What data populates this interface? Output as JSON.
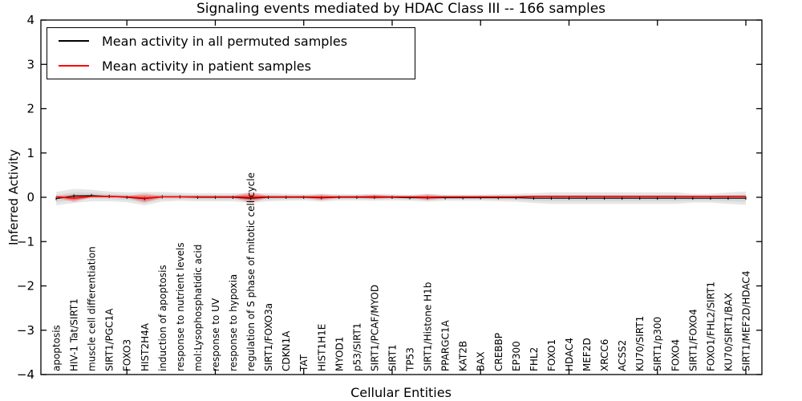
{
  "title": "Signaling events mediated by HDAC Class III -- 166 samples",
  "xlabel": "Cellular Entities",
  "ylabel": "Inferred Activity",
  "legend": [
    {
      "label": "Mean activity in all permuted samples",
      "color": "#000000"
    },
    {
      "label": "Mean activity in patient samples",
      "color": "#ff0000"
    }
  ],
  "colors": {
    "permuted_line": "#000000",
    "patient_line": "#ff0000",
    "permuted_band": "#c8c8c8",
    "patient_band": "#ff0000",
    "frame": "#000000"
  },
  "chart_data": {
    "type": "line",
    "title": "Signaling events mediated by HDAC Class III -- 166 samples",
    "xlabel": "Cellular Entities",
    "ylabel": "Inferred Activity",
    "ylim": [
      -4,
      4
    ],
    "yticks": [
      {
        "v": 4,
        "label": "4"
      },
      {
        "v": 3,
        "label": "3"
      },
      {
        "v": 2,
        "label": "2"
      },
      {
        "v": 1,
        "label": "1"
      },
      {
        "v": 0,
        "label": "0"
      },
      {
        "v": -1,
        "label": "−1"
      },
      {
        "v": -2,
        "label": "−2"
      },
      {
        "v": -3,
        "label": "−3"
      },
      {
        "v": -4,
        "label": "−4"
      }
    ],
    "x_major_tick_every": 5,
    "legend_position": "upper left",
    "grid": false,
    "categories": [
      "apoptosis",
      "HIV-1 Tat/SIRT1",
      "muscle cell differentiation",
      "SIRT1/PGC1A",
      "FOXO3",
      "HIST2H4A",
      "induction of apoptosis",
      "response to nutrient levels",
      "mol:Lysophosphatidic acid",
      "response to UV",
      "response to hypoxia",
      "regulation of S phase of mitotic cell cycle",
      "SIRT1/FOXO3a",
      "CDKN1A",
      "TAT",
      "HIST1H1E",
      "MYOD1",
      "p53/SIRT1",
      "SIRT1/PCAF/MYOD",
      "SIRT1",
      "TP53",
      "SIRT1/Histone H1b",
      "PPARGC1A",
      "KAT2B",
      "BAX",
      "CREBBP",
      "EP300",
      "FHL2",
      "FOXO1",
      "HDAC4",
      "MEF2D",
      "XRCC6",
      "ACSS2",
      "KU70/SIRT1",
      "SIRT1/p300",
      "FOXO4",
      "SIRT1/FOXO4",
      "FOXO1/FHL2/SIRT1",
      "KU70/SIRT1/BAX",
      "SIRT1/MEF2D/HDAC4"
    ],
    "series": [
      {
        "name": "Mean activity in all permuted samples",
        "color": "#000000",
        "values": [
          -0.03,
          0.03,
          0.04,
          0.02,
          0.0,
          -0.03,
          0.01,
          0.01,
          0.0,
          0.0,
          0.0,
          -0.02,
          0.0,
          0.0,
          0.0,
          -0.01,
          0.0,
          0.0,
          0.0,
          0.0,
          -0.01,
          -0.01,
          -0.01,
          -0.01,
          -0.01,
          -0.01,
          -0.01,
          -0.02,
          -0.02,
          -0.02,
          -0.02,
          -0.02,
          -0.02,
          -0.02,
          -0.02,
          -0.02,
          -0.02,
          -0.02,
          -0.02,
          -0.02
        ]
      },
      {
        "name": "Mean activity in patient samples",
        "color": "#ff0000",
        "values": [
          0.01,
          -0.02,
          0.02,
          0.02,
          0.01,
          -0.02,
          0.01,
          0.01,
          0.01,
          0.01,
          0.01,
          0.0,
          0.01,
          0.01,
          0.01,
          0.0,
          0.01,
          0.01,
          0.01,
          0.01,
          0.01,
          0.0,
          0.01,
          0.01,
          0.01,
          0.01,
          0.01,
          0.02,
          0.02,
          0.02,
          0.02,
          0.02,
          0.02,
          0.02,
          0.02,
          0.02,
          0.02,
          0.02,
          0.02,
          0.02
        ]
      }
    ],
    "bands": [
      {
        "name": "permuted-spread",
        "center_series": 0,
        "color": "#c8c8c8",
        "half_widths": [
          0.15,
          0.16,
          0.13,
          0.11,
          0.11,
          0.15,
          0.11,
          0.09,
          0.09,
          0.09,
          0.09,
          0.11,
          0.09,
          0.08,
          0.07,
          0.09,
          0.07,
          0.07,
          0.08,
          0.07,
          0.07,
          0.09,
          0.07,
          0.07,
          0.07,
          0.08,
          0.09,
          0.11,
          0.13,
          0.13,
          0.13,
          0.13,
          0.13,
          0.13,
          0.13,
          0.13,
          0.1,
          0.1,
          0.13,
          0.15
        ]
      },
      {
        "name": "patient-spread",
        "center_series": 1,
        "color": "#ff0000",
        "half_widths": [
          0.02,
          0.09,
          0.02,
          0.03,
          0.02,
          0.11,
          0.02,
          0.02,
          0.02,
          0.02,
          0.02,
          0.13,
          0.02,
          0.02,
          0.02,
          0.07,
          0.02,
          0.02,
          0.05,
          0.02,
          0.02,
          0.07,
          0.02,
          0.02,
          0.02,
          0.02,
          0.02,
          0.02,
          0.02,
          0.02,
          0.02,
          0.02,
          0.02,
          0.02,
          0.02,
          0.02,
          0.02,
          0.02,
          0.02,
          0.02
        ]
      }
    ]
  }
}
